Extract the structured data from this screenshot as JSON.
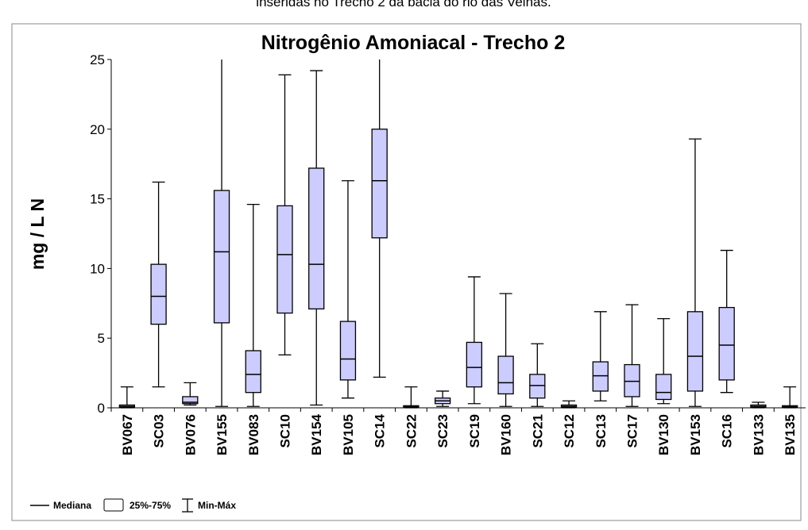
{
  "caption": "inseridas no Trecho 2 da bacia do rio das Velhas.",
  "chart_data": {
    "type": "box",
    "title": "Nitrogênio Amoniacal - Trecho 2",
    "ylabel": "mg / L N",
    "categories": [
      "BV067",
      "SC03",
      "BV076",
      "BV155",
      "BV083",
      "SC10",
      "BV154",
      "BV105",
      "SC14",
      "SC22",
      "SC23",
      "SC19",
      "BV160",
      "SC21",
      "SC12",
      "SC13",
      "SC17",
      "BV130",
      "BV153",
      "SC16",
      "BV133",
      "BV135"
    ],
    "min": [
      0,
      1.5,
      0.2,
      0.1,
      0.1,
      3.8,
      0.2,
      0.7,
      2.2,
      0,
      0.1,
      0.3,
      0.1,
      0.1,
      0,
      0.5,
      0.1,
      0.3,
      0.1,
      1.1,
      0,
      0
    ],
    "q1": [
      0.05,
      6.0,
      0.3,
      6.1,
      1.1,
      6.8,
      7.1,
      2.0,
      12.2,
      0.05,
      0.3,
      1.5,
      1.0,
      0.7,
      0.05,
      1.2,
      0.8,
      0.6,
      1.2,
      2.0,
      0.05,
      0.05
    ],
    "median": [
      0.1,
      8.0,
      0.4,
      11.2,
      2.4,
      11.0,
      10.3,
      3.5,
      16.3,
      0.1,
      0.5,
      2.9,
      1.8,
      1.6,
      0.1,
      2.3,
      1.9,
      1.1,
      3.7,
      4.5,
      0.1,
      0.1
    ],
    "q3": [
      0.2,
      10.3,
      0.8,
      15.6,
      4.1,
      14.5,
      17.2,
      6.2,
      20.0,
      0.15,
      0.7,
      4.7,
      3.7,
      2.4,
      0.2,
      3.3,
      3.1,
      2.4,
      6.9,
      7.2,
      0.2,
      0.15
    ],
    "max": [
      1.5,
      16.2,
      1.8,
      27,
      14.6,
      23.9,
      24.2,
      16.3,
      27,
      1.5,
      1.2,
      9.4,
      8.2,
      4.6,
      0.5,
      6.9,
      7.4,
      6.4,
      19.3,
      11.3,
      0.4,
      1.5
    ],
    "color": "#ccccff",
    "ylim": [
      0,
      25
    ],
    "yticks": [
      0,
      5,
      10,
      15,
      20,
      25
    ],
    "legend": [
      "Mediana",
      "25%-75%",
      "Min-Máx"
    ]
  }
}
